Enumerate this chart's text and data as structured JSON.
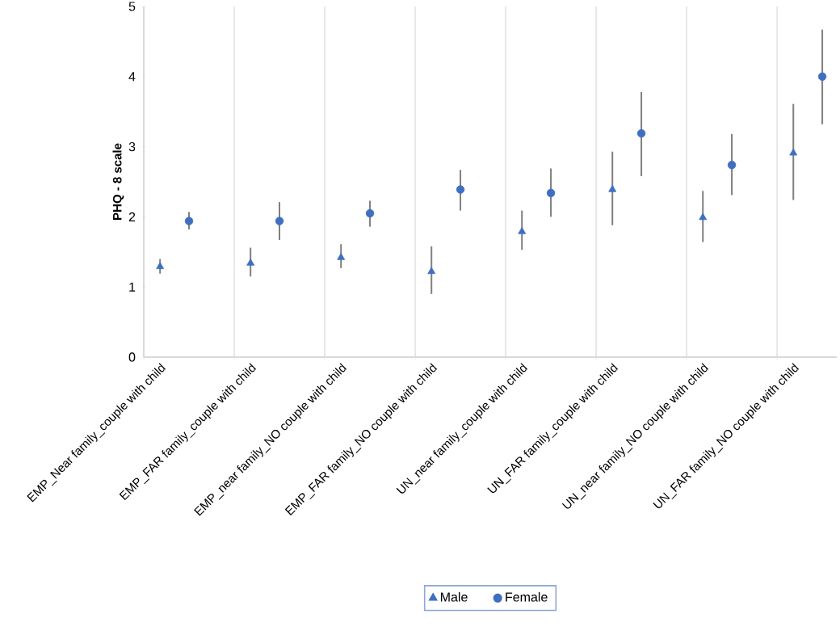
{
  "chart_data": {
    "type": "scatter",
    "ylabel": "PHQ - 8 scale",
    "categories": [
      "EMP_Near family_couple with child",
      "EMP_FAR family_couple with child",
      "EMP_near family_NO couple with child",
      "EMP_FAR family_NO couple with child",
      "UN_near family_couple with child",
      "UN_FAR family_couple with child",
      "UN_near family_NO couple with child",
      "UN_FAR family_NO couple with child"
    ],
    "series": [
      {
        "name": "Male",
        "color": "#3f6fc2",
        "marker": "triangle",
        "values": [
          1.29,
          1.34,
          1.42,
          1.22,
          1.79,
          2.39,
          1.99,
          2.91
        ],
        "errors": [
          [
            1.19,
            1.4
          ],
          [
            1.15,
            1.56
          ],
          [
            1.27,
            1.61
          ],
          [
            0.9,
            1.58
          ],
          [
            1.53,
            2.09
          ],
          [
            1.88,
            2.93
          ],
          [
            1.64,
            2.37
          ],
          [
            2.24,
            3.61
          ]
        ]
      },
      {
        "name": "Female",
        "color": "#3f6fc2",
        "marker": "circle",
        "values": [
          1.94,
          1.94,
          2.05,
          2.39,
          2.34,
          3.19,
          2.74,
          4.0
        ],
        "errors": [
          [
            1.82,
            2.07
          ],
          [
            1.67,
            2.21
          ],
          [
            1.86,
            2.23
          ],
          [
            2.09,
            2.67
          ],
          [
            2.0,
            2.69
          ],
          [
            2.58,
            3.78
          ],
          [
            2.31,
            3.18
          ],
          [
            3.32,
            4.67
          ]
        ]
      }
    ],
    "ylim": [
      0,
      5
    ],
    "yticks": [
      0,
      1,
      2,
      3,
      4,
      5
    ],
    "grid": "x",
    "legend": "bottom"
  }
}
